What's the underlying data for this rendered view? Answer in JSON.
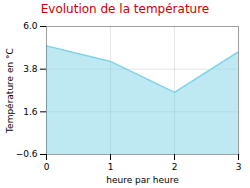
{
  "chart_data": {
    "type": "area",
    "title": "Evolution de la température",
    "xlabel": "heure par heure",
    "ylabel": "Température en °C",
    "x": [
      0,
      1,
      2,
      3
    ],
    "values": [
      5.0,
      4.2,
      2.6,
      4.7
    ],
    "color": "#7dd4e8",
    "xlim": [
      0,
      3
    ],
    "ylim": [
      -0.6,
      6.0
    ],
    "xticks": [
      0,
      1,
      2,
      3
    ],
    "yticks": [
      -0.6,
      1.6,
      3.8,
      {
        "value": 6.0,
        "label": "6.0"
      }
    ],
    "grid": true
  }
}
